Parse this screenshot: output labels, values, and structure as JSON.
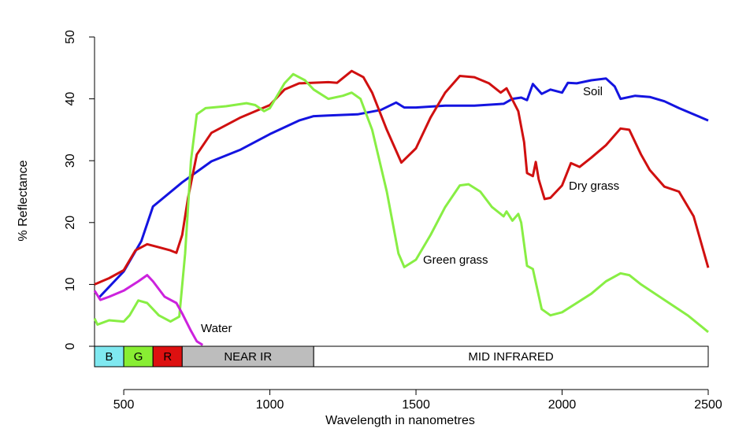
{
  "chart_data": {
    "type": "line",
    "xlabel": "Wavelength in nanometres",
    "ylabel": "% Reflectance",
    "xlim": [
      400,
      2500
    ],
    "ylim": [
      0,
      50
    ],
    "xticks": [
      500,
      1000,
      1500,
      2000,
      2500
    ],
    "yticks": [
      0,
      10,
      20,
      30,
      40,
      50
    ],
    "bands": [
      {
        "label": "B",
        "start": 400,
        "end": 500,
        "color": "#7fe8f0"
      },
      {
        "label": "G",
        "start": 500,
        "end": 600,
        "color": "#88ee33"
      },
      {
        "label": "R",
        "start": 600,
        "end": 700,
        "color": "#dd1010"
      },
      {
        "label": "NEAR IR",
        "start": 700,
        "end": 1150,
        "color": "#bdbdbd"
      },
      {
        "label": "MID INFRARED",
        "start": 1150,
        "end": 2500,
        "color": "#ffffff"
      }
    ],
    "series": [
      {
        "name": "Soil",
        "color": "#1414e0",
        "x": [
          416,
          500,
          560,
          600,
          700,
          800,
          900,
          1000,
          1100,
          1150,
          1200,
          1300,
          1380,
          1432,
          1460,
          1500,
          1600,
          1700,
          1800,
          1830,
          1860,
          1880,
          1900,
          1930,
          1960,
          2000,
          2020,
          2050,
          2100,
          2150,
          2180,
          2200,
          2250,
          2300,
          2350,
          2400,
          2450,
          2500
        ],
        "values": [
          7.9,
          12.1,
          17,
          22.6,
          26.5,
          29.9,
          31.8,
          34.3,
          36.5,
          37.2,
          37.3,
          37.5,
          38.2,
          39.4,
          38.6,
          38.6,
          38.9,
          38.9,
          39.2,
          40,
          40.2,
          39.8,
          42.4,
          40.8,
          41.5,
          41,
          42.6,
          42.5,
          43,
          43.3,
          42,
          40,
          40.5,
          40.3,
          39.6,
          38.5,
          37.5,
          36.5
        ]
      },
      {
        "name": "Dry grass",
        "color": "#d01010",
        "x": [
          400,
          450,
          500,
          540,
          580,
          620,
          660,
          680,
          700,
          720,
          750,
          800,
          900,
          1000,
          1050,
          1100,
          1200,
          1230,
          1280,
          1320,
          1350,
          1400,
          1450,
          1500,
          1550,
          1600,
          1650,
          1700,
          1750,
          1790,
          1810,
          1850,
          1870,
          1880,
          1900,
          1910,
          1920,
          1940,
          1960,
          2000,
          2030,
          2060,
          2100,
          2150,
          2200,
          2230,
          2270,
          2300,
          2350,
          2400,
          2450,
          2500
        ],
        "values": [
          10,
          11,
          12.3,
          15.5,
          16.5,
          16,
          15.5,
          15.1,
          18,
          24,
          31,
          34.5,
          37,
          39,
          41.5,
          42.5,
          42.7,
          42.6,
          44.5,
          43.5,
          41,
          35,
          29.7,
          32,
          37,
          41,
          43.7,
          43.5,
          42.5,
          41,
          41.7,
          38,
          33,
          28,
          27.5,
          29.8,
          27,
          23.8,
          24,
          26,
          29.6,
          29,
          30.5,
          32.5,
          35.2,
          35,
          31,
          28.5,
          25.8,
          25,
          21,
          12.7
        ]
      },
      {
        "name": "Green grass",
        "color": "#88ee44",
        "x": [
          400,
          410,
          450,
          500,
          520,
          550,
          580,
          620,
          660,
          690,
          710,
          730,
          750,
          780,
          850,
          920,
          950,
          980,
          1000,
          1050,
          1080,
          1120,
          1150,
          1200,
          1250,
          1280,
          1310,
          1350,
          1400,
          1440,
          1460,
          1500,
          1550,
          1600,
          1650,
          1680,
          1720,
          1760,
          1800,
          1810,
          1830,
          1850,
          1860,
          1880,
          1900,
          1930,
          1960,
          2000,
          2050,
          2100,
          2150,
          2200,
          2230,
          2270,
          2350,
          2430,
          2500
        ],
        "values": [
          4.5,
          3.5,
          4.2,
          4,
          5,
          7.4,
          7,
          5,
          4,
          4.8,
          15,
          30,
          37.5,
          38.5,
          38.8,
          39.3,
          39,
          38,
          38.5,
          42.5,
          44,
          43,
          41.5,
          40,
          40.5,
          41,
          40,
          35,
          25,
          15,
          12.8,
          14,
          18,
          22.5,
          26,
          26.2,
          25,
          22.5,
          21,
          21.8,
          20.3,
          21.4,
          20,
          13,
          12.5,
          6,
          5,
          5.5,
          7,
          8.5,
          10.5,
          11.8,
          11.5,
          10,
          7.5,
          5,
          2.3
        ]
      },
      {
        "name": "Water",
        "color": "#cc22dd",
        "x": [
          400,
          420,
          450,
          500,
          550,
          580,
          600,
          640,
          680,
          700,
          730,
          750,
          770
        ],
        "values": [
          9,
          7.5,
          8,
          9,
          10.5,
          11.5,
          10.5,
          8,
          7,
          5.3,
          2.5,
          0.8,
          0.2
        ]
      }
    ]
  }
}
